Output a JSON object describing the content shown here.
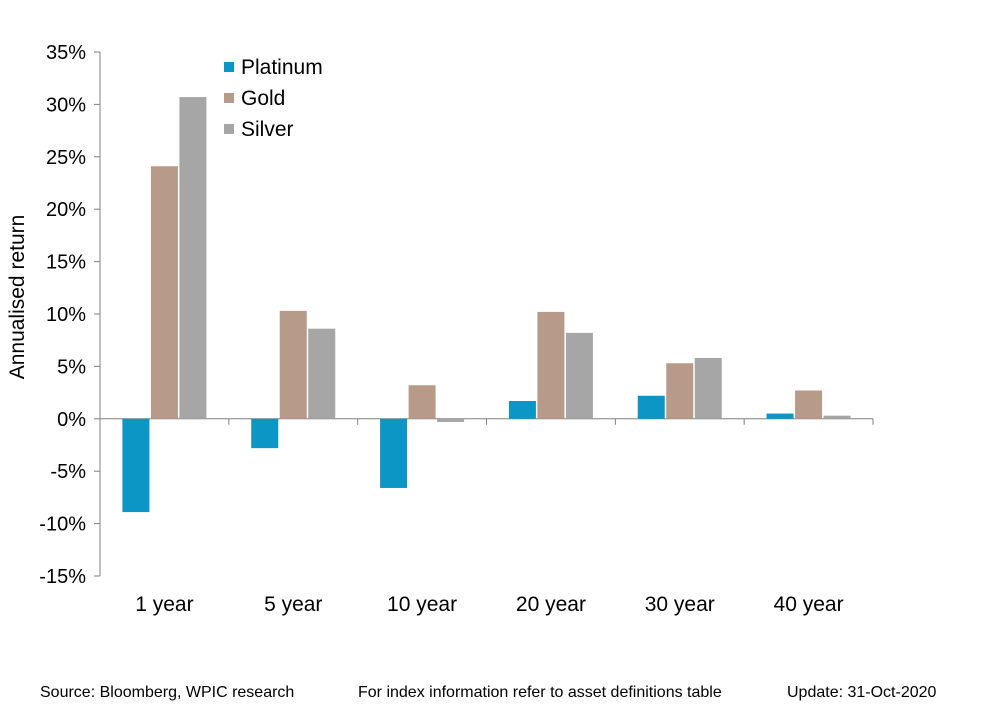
{
  "chart_data": {
    "type": "bar",
    "ylabel": "Annualised return",
    "ylim": [
      -15,
      35
    ],
    "yticks": [
      35,
      30,
      25,
      20,
      15,
      10,
      5,
      0,
      -5,
      -10,
      -15
    ],
    "ytick_labels": [
      "35%",
      "30%",
      "25%",
      "20%",
      "15%",
      "10%",
      "5%",
      "0%",
      "-5%",
      "-10%",
      "-15%"
    ],
    "categories": [
      "1 year",
      "5 year",
      "10 year",
      "20 year",
      "30 year",
      "40 year"
    ],
    "series": [
      {
        "name": "Platinum",
        "color": "#0b96c6",
        "values": [
          -8.9,
          -2.8,
          -6.6,
          1.7,
          2.2,
          0.5
        ]
      },
      {
        "name": "Gold",
        "color": "#b89a88",
        "values": [
          24.1,
          10.3,
          3.2,
          10.2,
          5.3,
          2.7
        ]
      },
      {
        "name": "Silver",
        "color": "#a6a6a6",
        "values": [
          30.7,
          8.6,
          -0.3,
          8.2,
          5.8,
          0.3
        ]
      }
    ],
    "legend": "top-left",
    "grid": false
  },
  "footer": {
    "source": "Source: Bloomberg, WPIC research",
    "note": "For index information refer to asset definitions table",
    "update": "Update: 31-Oct-2020"
  }
}
